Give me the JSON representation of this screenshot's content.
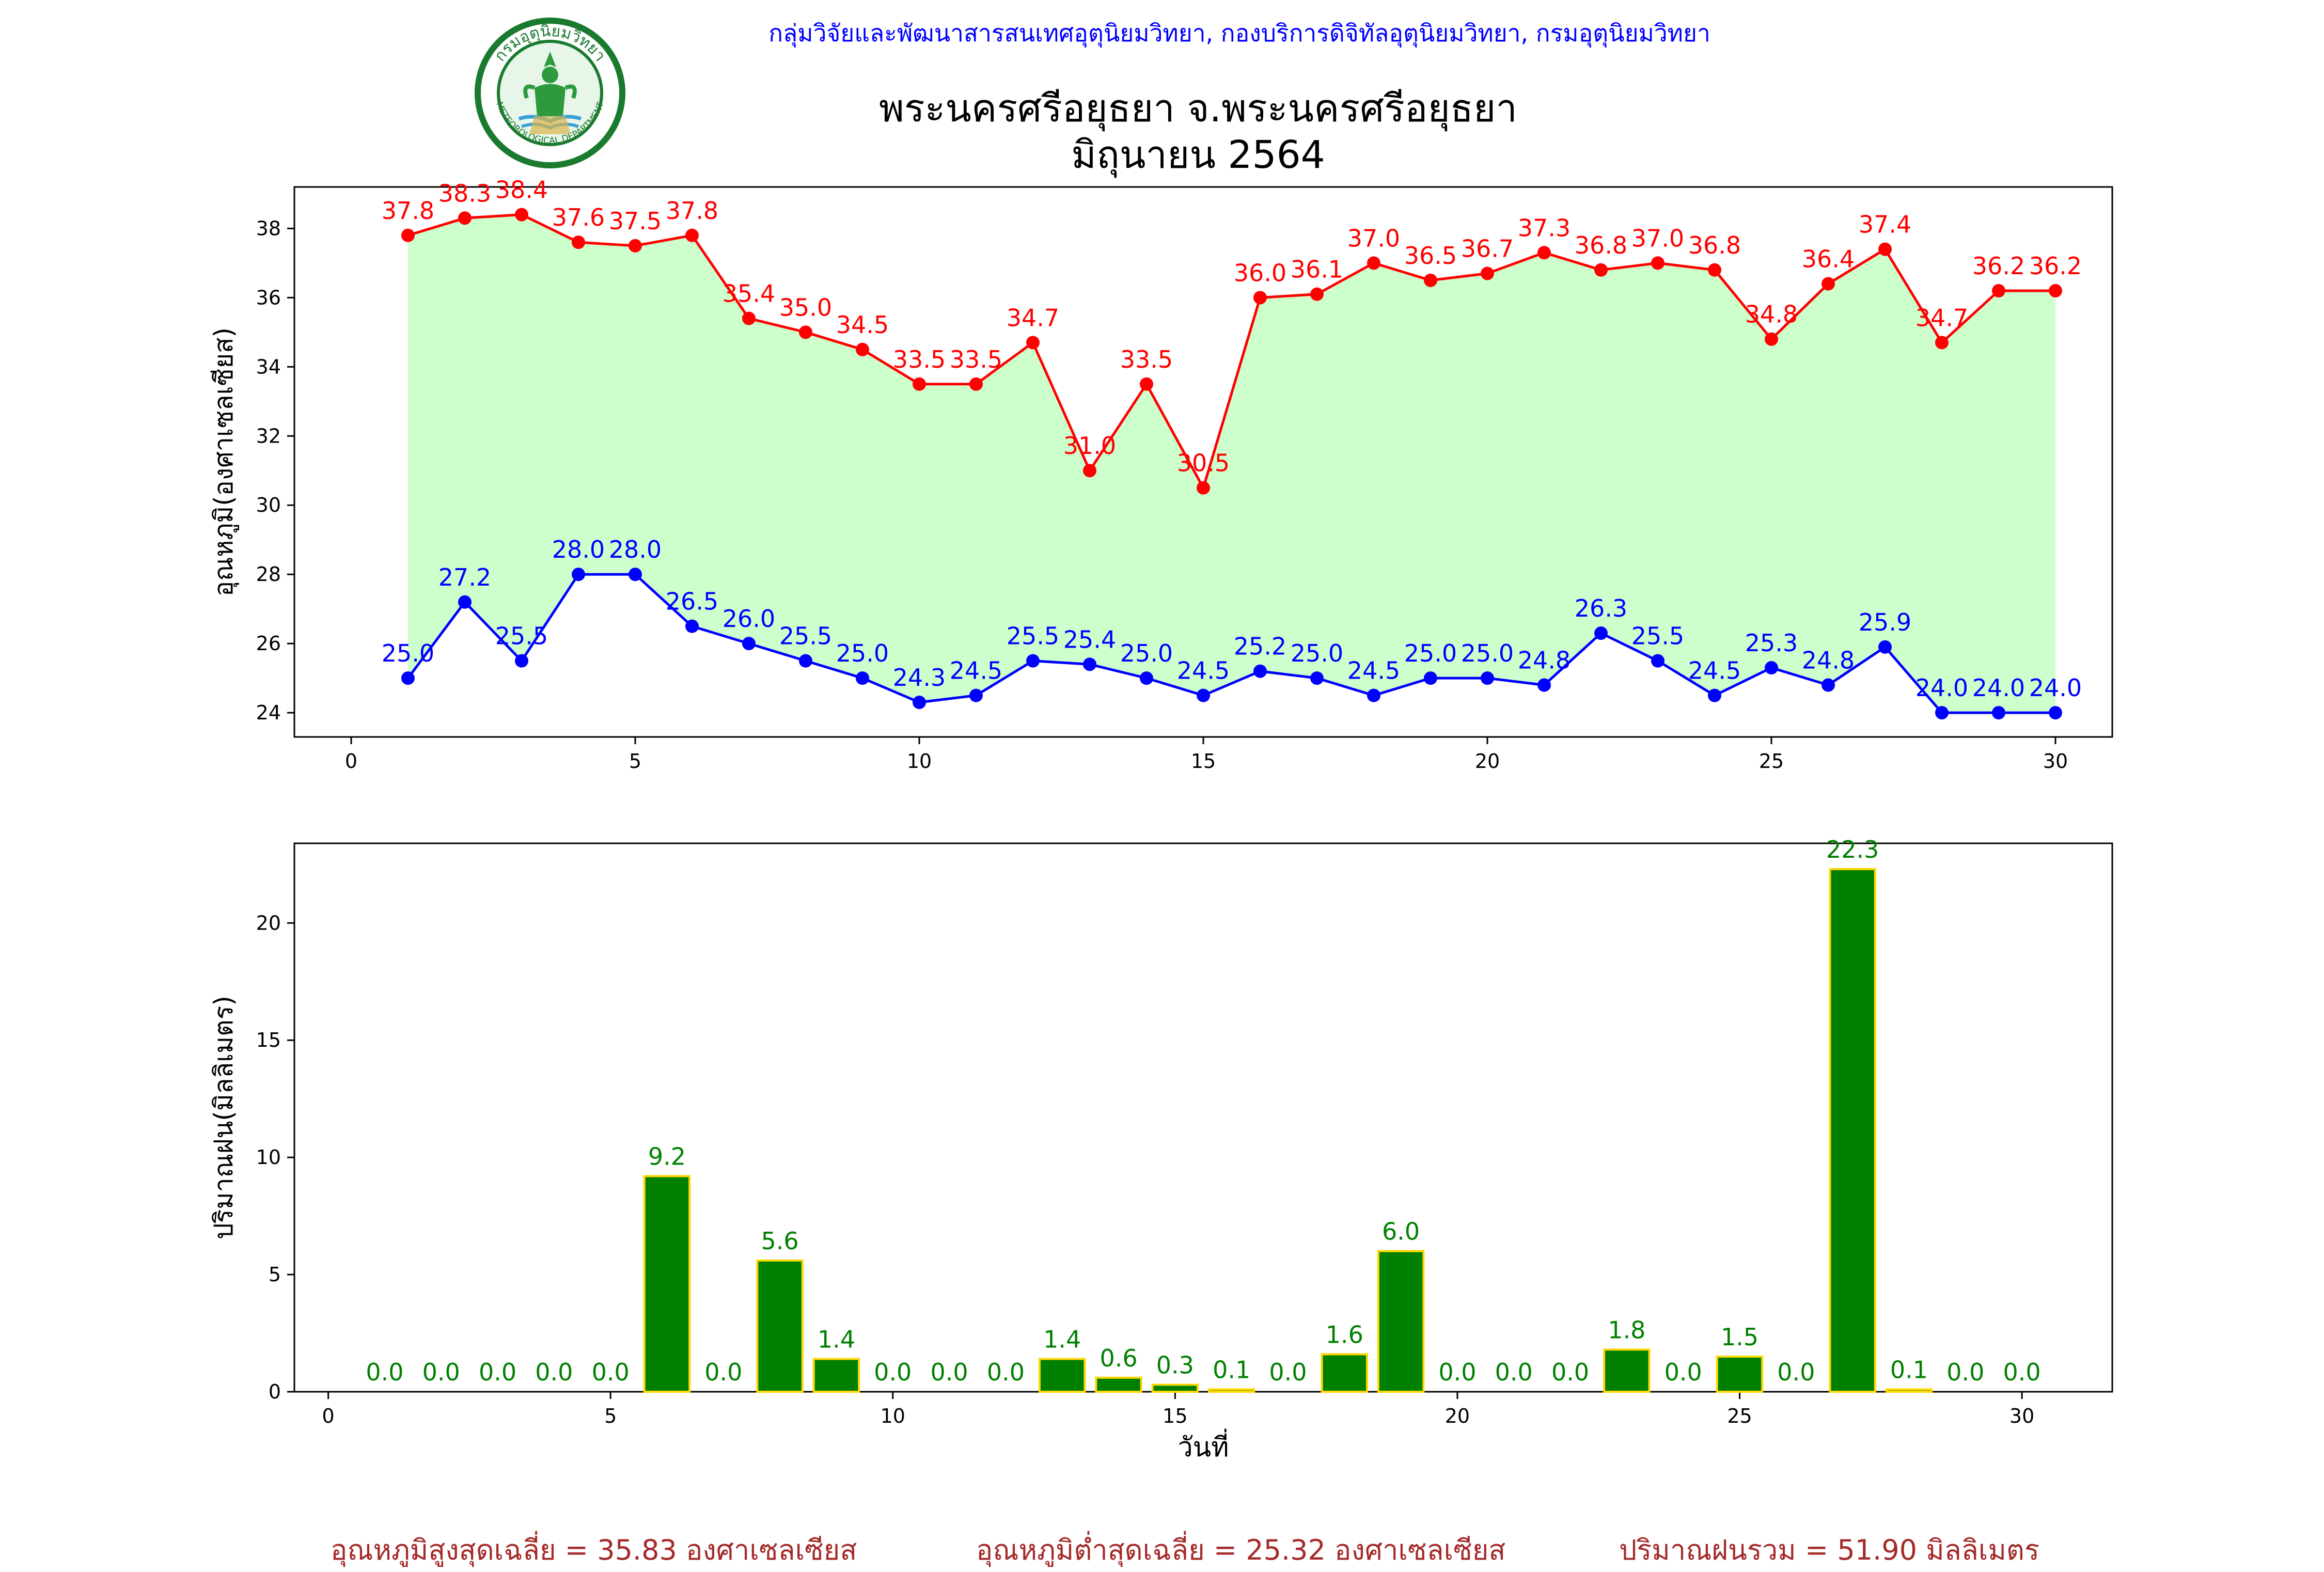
{
  "header": {
    "organization": "กลุ่มวิจัยและพัฒนาสารสนเทศอุตุนิยมวิทยา, กองบริการดิจิทัลอุตุนิยมวิทยา, กรมอุตุนิยมวิทยา",
    "title_line1": "พระนครศรีอยุธยา จ.พระนครศรีอยุธยา",
    "title_line2": "มิถุนายน 2564",
    "logo_top_text": "กรมอุตุนิยมวิทยา",
    "logo_bottom_text": "METEOROLOGICAL DEPARTMENT"
  },
  "colors": {
    "max_temp": "#ff0000",
    "min_temp": "#0000ff",
    "temp_fill": "#ccffcc",
    "rain_bar": "#008000",
    "rain_edge": "#ffd700",
    "rain_label": "#008000",
    "footer_text": "#a52a2a"
  },
  "chart_data": [
    {
      "type": "line",
      "ylabel": "อุณหภูมิ(องศาเซลเซียส)",
      "xlabel": "",
      "xlim": [
        -1,
        31
      ],
      "ylim": [
        23.3,
        39.2
      ],
      "xticks": [
        0,
        5,
        10,
        15,
        20,
        25,
        30
      ],
      "yticks": [
        24,
        26,
        28,
        30,
        32,
        34,
        36,
        38
      ],
      "fill_between": true,
      "grid": false,
      "x": [
        1,
        2,
        3,
        4,
        5,
        6,
        7,
        8,
        9,
        10,
        11,
        12,
        13,
        14,
        15,
        16,
        17,
        18,
        19,
        20,
        21,
        22,
        23,
        24,
        25,
        26,
        27,
        28,
        29,
        30
      ],
      "series": [
        {
          "key": "max",
          "values": [
            37.8,
            38.3,
            38.4,
            37.6,
            37.5,
            37.8,
            35.4,
            35.0,
            34.5,
            33.5,
            33.5,
            34.7,
            31.0,
            33.5,
            30.5,
            36.0,
            36.1,
            37.0,
            36.5,
            36.7,
            37.3,
            36.8,
            37.0,
            36.8,
            34.8,
            36.4,
            37.4,
            34.7,
            36.2,
            36.2
          ]
        },
        {
          "key": "min",
          "values": [
            25.0,
            27.2,
            25.5,
            28.0,
            28.0,
            26.5,
            26.0,
            25.5,
            25.0,
            24.3,
            24.5,
            25.5,
            25.4,
            25.0,
            24.5,
            25.2,
            25.0,
            24.5,
            25.0,
            25.0,
            24.8,
            26.3,
            25.5,
            24.5,
            25.3,
            24.8,
            25.9,
            24.0,
            24.0,
            24.0
          ]
        }
      ]
    },
    {
      "type": "bar",
      "ylabel": "ปริมาณฝน(มิลลิเมตร)",
      "xlabel": "วันที่",
      "xlim": [
        -0.6,
        31.6
      ],
      "ylim": [
        0,
        23.4
      ],
      "xticks": [
        0,
        5,
        10,
        15,
        20,
        25,
        30
      ],
      "yticks": [
        0,
        5,
        10,
        15,
        20
      ],
      "grid": false,
      "x": [
        1,
        2,
        3,
        4,
        5,
        6,
        7,
        8,
        9,
        10,
        11,
        12,
        13,
        14,
        15,
        16,
        17,
        18,
        19,
        20,
        21,
        22,
        23,
        24,
        25,
        26,
        27,
        28,
        29,
        30
      ],
      "values": [
        0.0,
        0.0,
        0.0,
        0.0,
        0.0,
        9.2,
        0.0,
        5.6,
        1.4,
        0.0,
        0.0,
        0.0,
        1.4,
        0.6,
        0.3,
        0.1,
        0.0,
        1.6,
        6.0,
        0.0,
        0.0,
        0.0,
        1.8,
        0.0,
        1.5,
        0.0,
        22.3,
        0.1,
        0.0,
        0.0
      ]
    }
  ],
  "footer": {
    "avg_max": "อุณหภูมิสูงสุดเฉลี่ย = 35.83 องศาเซลเซียส",
    "avg_min": "อุณหภูมิต่ำสุดเฉลี่ย = 25.32 องศาเซลเซียส",
    "total_rain": "ปริมาณฝนรวม = 51.90 มิลลิเมตร"
  }
}
